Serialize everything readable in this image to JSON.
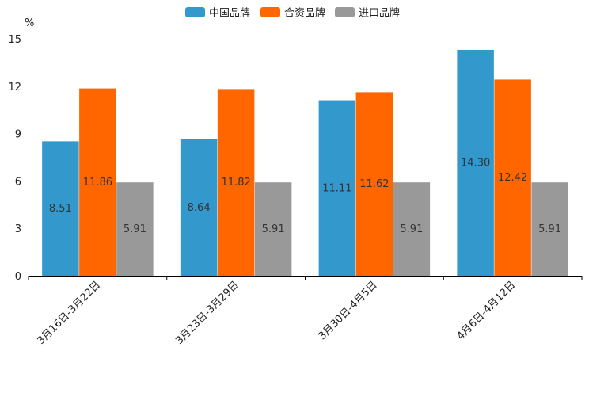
{
  "chart_data": {
    "type": "bar",
    "title": "",
    "xlabel": "",
    "ylabel": "%",
    "ylim": [
      0,
      15
    ],
    "yticks": [
      "0",
      "3",
      "6",
      "9",
      "12",
      "15"
    ],
    "categories": [
      "3月16日-3月22日",
      "3月23日-3月29日",
      "3月30日-4月5日",
      "4月6日-4月12日"
    ],
    "legend_position": "top-center",
    "series": [
      {
        "name": "中国品牌",
        "color": "#3399CC",
        "values": [
          8.51,
          8.64,
          11.11,
          14.3
        ],
        "labels": [
          "8.51",
          "8.64",
          "11.11",
          "14.30"
        ]
      },
      {
        "name": "合资品牌",
        "color": "#FF6600",
        "values": [
          11.86,
          11.82,
          11.62,
          12.42
        ],
        "labels": [
          "11.86",
          "11.82",
          "11.62",
          "12.42"
        ]
      },
      {
        "name": "进口品牌",
        "color": "#999999",
        "values": [
          5.91,
          5.91,
          5.91,
          5.91
        ],
        "labels": [
          "5.91",
          "5.91",
          "5.91",
          "5.91"
        ]
      }
    ]
  }
}
